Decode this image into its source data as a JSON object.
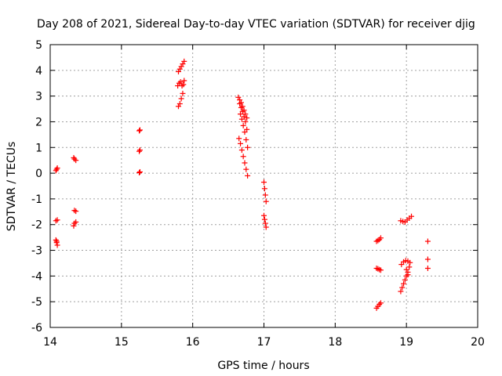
{
  "chart_data": {
    "type": "scatter",
    "title": "Day 208 of 2021, Sidereal Day-to-day VTEC variation (SDTVAR) for receiver djig",
    "xlabel": "GPS time / hours",
    "ylabel": "SDTVAR / TECUs",
    "xlim": [
      14,
      20
    ],
    "ylim": [
      -6,
      5
    ],
    "xticks": [
      "14",
      "15",
      "16",
      "17",
      "18",
      "19",
      "20"
    ],
    "yticks": [
      "-6",
      "-5",
      "-4",
      "-3",
      "-2",
      "-1",
      "0",
      "1",
      "2",
      "3",
      "4",
      "5"
    ],
    "grid": true,
    "marker": "+",
    "color": "#ff0000",
    "series": [
      {
        "name": "SDTVAR",
        "points": [
          [
            14.08,
            0.1
          ],
          [
            14.09,
            0.15
          ],
          [
            14.1,
            0.2
          ],
          [
            14.08,
            -1.85
          ],
          [
            14.1,
            -1.82
          ],
          [
            14.08,
            -2.6
          ],
          [
            14.09,
            -2.7
          ],
          [
            14.1,
            -2.8
          ],
          [
            14.09,
            -2.65
          ],
          [
            14.33,
            0.6
          ],
          [
            14.34,
            0.55
          ],
          [
            14.36,
            0.5
          ],
          [
            14.34,
            -1.45
          ],
          [
            14.36,
            -1.48
          ],
          [
            14.33,
            -2.05
          ],
          [
            14.34,
            -1.95
          ],
          [
            14.36,
            -1.9
          ],
          [
            15.25,
            1.65
          ],
          [
            15.26,
            1.68
          ],
          [
            15.25,
            0.85
          ],
          [
            15.26,
            0.9
          ],
          [
            15.25,
            0.02
          ],
          [
            15.26,
            0.05
          ],
          [
            15.8,
            2.6
          ],
          [
            15.82,
            2.7
          ],
          [
            15.84,
            2.9
          ],
          [
            15.86,
            3.1
          ],
          [
            15.79,
            3.4
          ],
          [
            15.81,
            3.5
          ],
          [
            15.83,
            3.55
          ],
          [
            15.85,
            3.4
          ],
          [
            15.87,
            3.45
          ],
          [
            15.88,
            3.6
          ],
          [
            15.8,
            3.95
          ],
          [
            15.82,
            4.05
          ],
          [
            15.84,
            4.15
          ],
          [
            15.86,
            4.25
          ],
          [
            15.88,
            4.35
          ],
          [
            16.65,
            1.35
          ],
          [
            16.67,
            1.15
          ],
          [
            16.69,
            0.9
          ],
          [
            16.71,
            0.65
          ],
          [
            16.73,
            0.4
          ],
          [
            16.75,
            0.15
          ],
          [
            16.77,
            -0.1
          ],
          [
            16.64,
            2.95
          ],
          [
            16.66,
            2.85
          ],
          [
            16.68,
            2.75
          ],
          [
            16.7,
            2.6
          ],
          [
            16.72,
            2.45
          ],
          [
            16.74,
            2.3
          ],
          [
            16.76,
            2.15
          ],
          [
            16.67,
            2.3
          ],
          [
            16.69,
            2.1
          ],
          [
            16.71,
            1.85
          ],
          [
            16.73,
            1.6
          ],
          [
            16.75,
            1.3
          ],
          [
            16.77,
            1.0
          ],
          [
            16.66,
            2.7
          ],
          [
            16.68,
            2.55
          ],
          [
            16.7,
            2.4
          ],
          [
            16.72,
            2.2
          ],
          [
            16.74,
            2.0
          ],
          [
            16.76,
            1.7
          ],
          [
            17.0,
            -0.35
          ],
          [
            17.01,
            -0.6
          ],
          [
            17.02,
            -0.85
          ],
          [
            17.03,
            -1.1
          ],
          [
            17.0,
            -1.65
          ],
          [
            17.01,
            -1.8
          ],
          [
            17.02,
            -1.95
          ],
          [
            17.03,
            -2.1
          ],
          [
            18.58,
            -2.65
          ],
          [
            18.6,
            -2.62
          ],
          [
            18.62,
            -2.58
          ],
          [
            18.64,
            -2.52
          ],
          [
            18.58,
            -3.7
          ],
          [
            18.6,
            -3.72
          ],
          [
            18.62,
            -3.75
          ],
          [
            18.64,
            -3.77
          ],
          [
            18.58,
            -5.25
          ],
          [
            18.6,
            -5.18
          ],
          [
            18.62,
            -5.1
          ],
          [
            18.64,
            -5.05
          ],
          [
            18.92,
            -1.85
          ],
          [
            18.95,
            -1.88
          ],
          [
            18.98,
            -1.9
          ],
          [
            19.01,
            -1.82
          ],
          [
            19.04,
            -1.75
          ],
          [
            19.07,
            -1.68
          ],
          [
            18.92,
            -4.6
          ],
          [
            18.94,
            -4.45
          ],
          [
            18.96,
            -4.3
          ],
          [
            18.98,
            -4.15
          ],
          [
            19.0,
            -4.0
          ],
          [
            19.02,
            -3.85
          ],
          [
            19.04,
            -3.65
          ],
          [
            18.93,
            -3.55
          ],
          [
            18.96,
            -3.45
          ],
          [
            18.99,
            -3.4
          ],
          [
            19.02,
            -3.42
          ],
          [
            19.05,
            -3.48
          ],
          [
            19.0,
            -3.75
          ],
          [
            19.02,
            -3.95
          ],
          [
            19.3,
            -2.65
          ],
          [
            19.3,
            -3.35
          ],
          [
            19.3,
            -3.7
          ]
        ]
      }
    ]
  }
}
